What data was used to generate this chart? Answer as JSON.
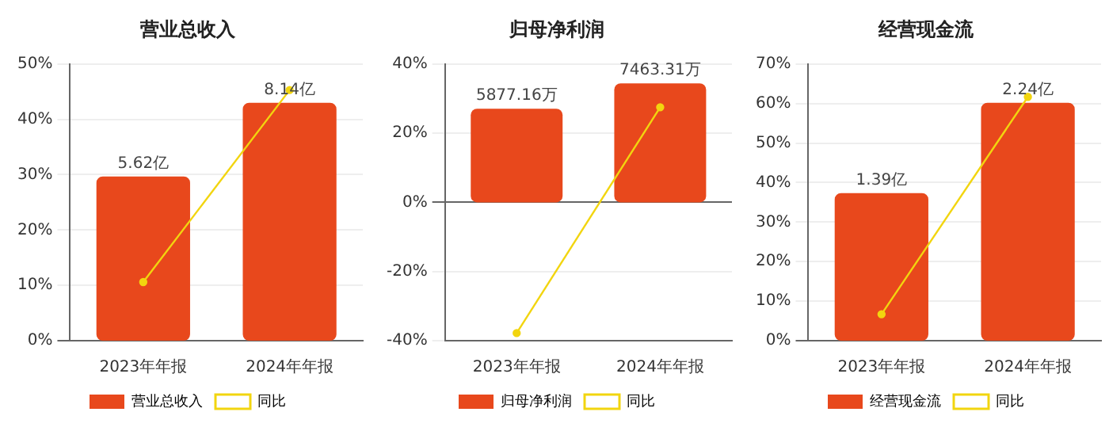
{
  "chart_data": [
    {
      "type": "bar",
      "title": "营业总收入",
      "categories": [
        "2023年年报",
        "2024年年报"
      ],
      "series": [
        {
          "name": "营业总收入",
          "axis": "y2",
          "color": "#e8481c",
          "values": [
            5.62,
            8.14
          ],
          "value_labels": [
            "5.62亿",
            "8.14亿"
          ]
        },
        {
          "name": "同比",
          "type": "line",
          "color": "#f2d50f",
          "values": [
            10.6,
            45.3
          ]
        }
      ],
      "ylim": [
        0,
        50
      ],
      "yticks": [
        {
          "value": 0,
          "label": "0%"
        },
        {
          "value": 10,
          "label": "10%"
        },
        {
          "value": 20,
          "label": "20%"
        },
        {
          "value": 30,
          "label": "30%"
        },
        {
          "value": 40,
          "label": "40%"
        },
        {
          "value": 50,
          "label": "50%"
        }
      ],
      "grid": "y",
      "legend": "bottom",
      "marker": "circle"
    },
    {
      "type": "bar",
      "title": "归母净利润",
      "categories": [
        "2023年年报",
        "2024年年报"
      ],
      "series": [
        {
          "name": "归母净利润",
          "axis": "y2",
          "color": "#e8481c",
          "values": [
            5877.16,
            7463.31
          ],
          "value_labels": [
            "5877.16万",
            "7463.31万"
          ]
        },
        {
          "name": "同比",
          "type": "line",
          "color": "#f2d50f",
          "values": [
            -37.8,
            27.5
          ]
        }
      ],
      "ylim": [
        -40,
        40
      ],
      "yticks": [
        {
          "value": -40,
          "label": "-40%"
        },
        {
          "value": -20,
          "label": "-20%"
        },
        {
          "value": 0,
          "label": "0%"
        },
        {
          "value": 20,
          "label": "20%"
        },
        {
          "value": 40,
          "label": "40%"
        }
      ],
      "grid": "y",
      "legend": "bottom",
      "marker": "circle"
    },
    {
      "type": "bar",
      "title": "经营现金流",
      "categories": [
        "2023年年报",
        "2024年年报"
      ],
      "series": [
        {
          "name": "经营现金流",
          "axis": "y2",
          "color": "#e8481c",
          "values": [
            1.39,
            2.24
          ],
          "value_labels": [
            "1.39亿",
            "2.24亿"
          ]
        },
        {
          "name": "同比",
          "type": "line",
          "color": "#f2d50f",
          "values": [
            6.7,
            61.7
          ]
        }
      ],
      "ylim": [
        0,
        70
      ],
      "yticks": [
        {
          "value": 0,
          "label": "0%"
        },
        {
          "value": 10,
          "label": "10%"
        },
        {
          "value": 20,
          "label": "20%"
        },
        {
          "value": 30,
          "label": "30%"
        },
        {
          "value": 40,
          "label": "40%"
        },
        {
          "value": 50,
          "label": "50%"
        },
        {
          "value": 60,
          "label": "60%"
        },
        {
          "value": 70,
          "label": "70%"
        }
      ],
      "grid": "y",
      "legend": "bottom",
      "marker": "circle"
    }
  ]
}
